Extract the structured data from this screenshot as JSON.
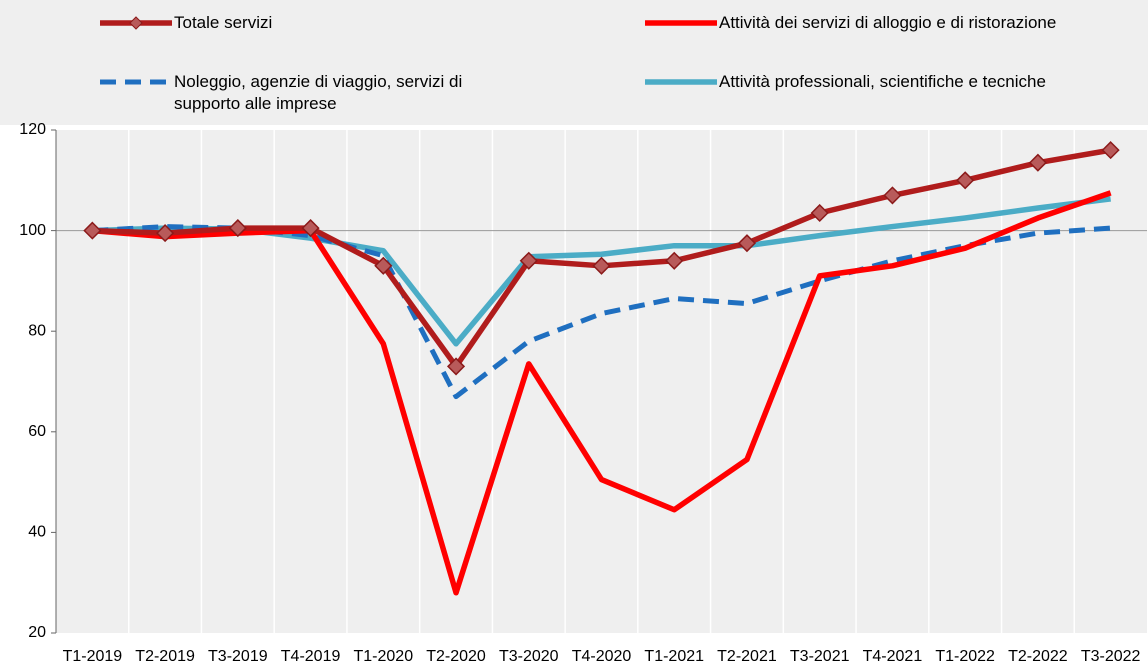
{
  "chart_data": {
    "type": "line",
    "categories": [
      "T1-2019",
      "T2-2019",
      "T3-2019",
      "T4-2019",
      "T1-2020",
      "T2-2020",
      "T3-2020",
      "T4-2020",
      "T1-2021",
      "T2-2021",
      "T3-2021",
      "T4-2021",
      "T1-2022",
      "T2-2022",
      "T3-2022"
    ],
    "series": [
      {
        "name": "Totale servizi",
        "color": "#b01c1c",
        "marker": "diamond",
        "values": [
          100,
          99.5,
          100.5,
          100.5,
          93,
          73,
          94,
          93,
          94,
          97.5,
          103.5,
          107,
          110,
          113.5,
          116
        ]
      },
      {
        "name": "Attività dei servizi di alloggio e di ristorazione",
        "color": "#ff0000",
        "values": [
          100,
          98.8,
          99.5,
          100,
          77.5,
          28,
          73.5,
          50.5,
          44.5,
          54.5,
          91,
          93,
          96.5,
          102.5,
          107.5
        ]
      },
      {
        "name": "Noleggio, agenzie di viaggio, servizi di supporto alle imprese",
        "color": "#1f6fc0",
        "dash": true,
        "values": [
          100,
          100.8,
          100.5,
          99,
          95,
          67,
          78,
          83.5,
          86.5,
          85.5,
          90,
          94,
          97,
          99.5,
          100.5
        ]
      },
      {
        "name": "Attività professionali, scientifiche e tecniche",
        "color": "#4bacc6",
        "values": [
          100,
          100.5,
          100.3,
          98.5,
          96,
          77.5,
          94.8,
          95.3,
          97,
          97,
          99,
          100.8,
          102.5,
          104.5,
          106.3
        ]
      }
    ],
    "ylim": [
      20,
      120
    ],
    "yticks": [
      20,
      40,
      60,
      80,
      100,
      120
    ],
    "hline": 100,
    "legend": "top"
  }
}
